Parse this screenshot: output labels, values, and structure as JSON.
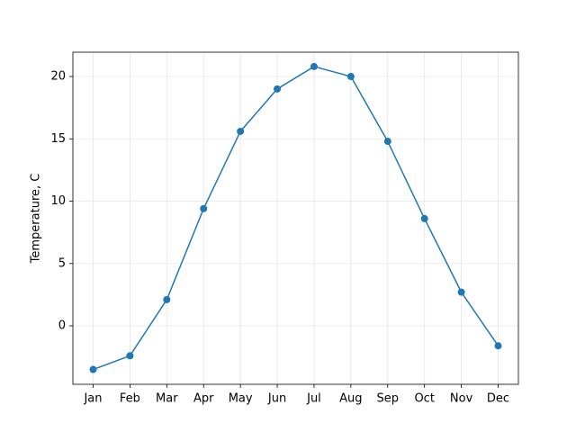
{
  "chart_data": {
    "type": "line",
    "y_label": "Temperature, C",
    "categories": [
      "Jan",
      "Feb",
      "Mar",
      "Apr",
      "May",
      "Jun",
      "Jul",
      "Aug",
      "Sep",
      "Oct",
      "Nov",
      "Dec"
    ],
    "series": [
      {
        "color": "#1f77b4",
        "values": [
          -3.5,
          -2.4,
          2.1,
          9.4,
          15.6,
          19.0,
          20.8,
          20.0,
          14.8,
          8.6,
          2.7,
          -1.6
        ]
      }
    ],
    "ylim": [
      -4.69,
      21.95
    ],
    "yticks": [
      0,
      5,
      10,
      15,
      20
    ],
    "grid": true
  }
}
